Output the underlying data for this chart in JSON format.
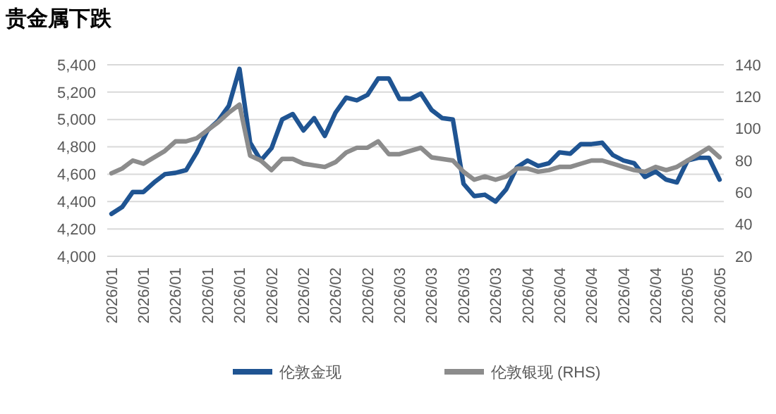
{
  "chart_data": {
    "type": "line",
    "title": "贵金属下跌",
    "categories": [
      "2026/01",
      null,
      null,
      "2026/01",
      null,
      null,
      "2026/01",
      null,
      null,
      "2026/01",
      null,
      null,
      "2026/01",
      null,
      null,
      "2026/02",
      null,
      null,
      "2026/02",
      null,
      null,
      "2026/02",
      null,
      null,
      "2026/02",
      null,
      null,
      "2026/03",
      null,
      null,
      "2026/03",
      null,
      null,
      "2026/03",
      null,
      null,
      "2026/03",
      null,
      null,
      "2026/04",
      null,
      null,
      "2026/04",
      null,
      null,
      "2026/04",
      null,
      null,
      "2026/04",
      null,
      null,
      "2026/04",
      null,
      null,
      "2026/05",
      null,
      null,
      "2026/05"
    ],
    "series": [
      {
        "name": "伦敦金现",
        "color": "#1f5492",
        "values": [
          4310,
          4360,
          4470,
          4470,
          4540,
          4600,
          4610,
          4630,
          4760,
          4920,
          4990,
          5100,
          5370,
          4830,
          4700,
          4790,
          5000,
          5040,
          4920,
          5010,
          4880,
          5050,
          5160,
          5140,
          5180,
          5300,
          5300,
          5150,
          5150,
          5190,
          5070,
          5010,
          5000,
          4530,
          4440,
          4450,
          4400,
          4490,
          4650,
          4700,
          4660,
          4680,
          4760,
          4750,
          4820,
          4820,
          4830,
          4740,
          4700,
          4680,
          4580,
          4620,
          4560,
          4540,
          4700,
          4720,
          4720,
          4560
        ]
      },
      {
        "name": "伦敦银现 (RHS)",
        "color": "#8c8c8c",
        "axis": "y2",
        "values": [
          72,
          75,
          80,
          78,
          82,
          86,
          92,
          92,
          94,
          99,
          104,
          110,
          115,
          83,
          80,
          74,
          81,
          81,
          78,
          77,
          76,
          79,
          85,
          88,
          88,
          92,
          84,
          84,
          86,
          88,
          82,
          81,
          80,
          73,
          68,
          70,
          68,
          70,
          75,
          75,
          73,
          74,
          76,
          76,
          78,
          80,
          80,
          78,
          76,
          74,
          73,
          76,
          74,
          76,
          80,
          84,
          88,
          82
        ]
      }
    ],
    "ylim": [
      4000,
      5400
    ],
    "yticks": [
      {
        "value": 4000,
        "label": "4,000"
      },
      {
        "value": 4200,
        "label": "4,200"
      },
      {
        "value": 4400,
        "label": "4,400"
      },
      {
        "value": 4600,
        "label": "4,600"
      },
      {
        "value": 4800,
        "label": "4,800"
      },
      {
        "value": 5000,
        "label": "5,000"
      },
      {
        "value": 5200,
        "label": "5,200"
      },
      {
        "value": 5400,
        "label": "5,400"
      }
    ],
    "y2lim": [
      20,
      140
    ],
    "y2ticks": [
      20,
      40,
      60,
      80,
      100,
      120,
      140
    ],
    "grid": "y",
    "legend": "bottom",
    "marker": "none",
    "line_style": "solid"
  }
}
